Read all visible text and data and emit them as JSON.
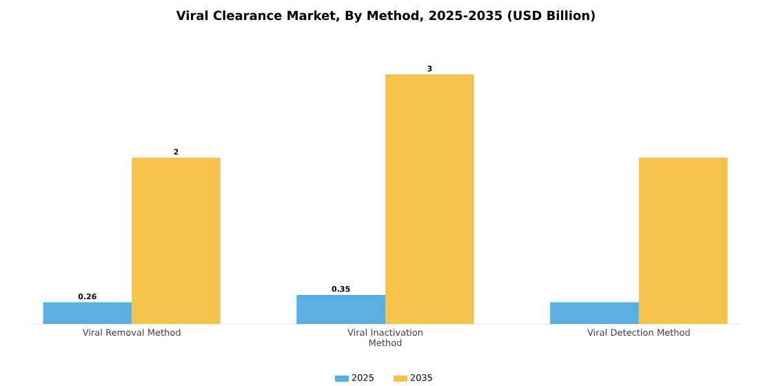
{
  "chart_data": {
    "type": "bar",
    "title": "Viral Clearance Market, By Method, 2025-2035 (USD Billion)",
    "categories": [
      "Viral Removal Method",
      "Viral Inactivation Method",
      "Viral Detection Method"
    ],
    "legend": "bottom",
    "series": [
      {
        "name": "2025",
        "color": "#5aafe0",
        "values": [
          0.26,
          0.35,
          0.26
        ],
        "value_labels": [
          "0.26",
          "0.35",
          null
        ]
      },
      {
        "name": "2035",
        "color": "#f5c24c",
        "values": [
          2,
          3,
          2
        ],
        "value_labels": [
          "2",
          "3",
          null
        ]
      }
    ]
  }
}
